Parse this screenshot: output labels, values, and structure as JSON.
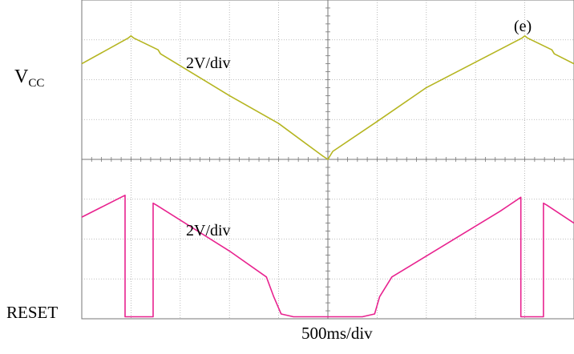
{
  "panel_tag": "(e)",
  "channel_labels": {
    "ch1_main": "V",
    "ch1_sub": "CC",
    "ch2": "RESET"
  },
  "scales": {
    "ch1": "2V/div",
    "ch2": "2V/div",
    "time": "500ms/div"
  },
  "colors": {
    "ch1": "#b5b520",
    "ch2": "#e8238f",
    "grid": "#aaaaaa",
    "background": "#ffffff"
  },
  "chart_data": {
    "type": "line",
    "x_unit": "div",
    "y_unit": "div",
    "xlim": [
      0,
      10
    ],
    "ylim": [
      0,
      8
    ],
    "grid": true,
    "series": [
      {
        "name": "V_CC",
        "color": "#b5b520",
        "x": [
          0,
          0.95,
          1.0,
          1.05,
          1.55,
          1.6,
          3.0,
          4.0,
          4.9,
          5.0,
          5.1,
          6.0,
          7.0,
          8.95,
          9.0,
          9.05,
          9.55,
          9.6,
          10.0
        ],
        "y": [
          6.4,
          7.05,
          7.1,
          7.05,
          6.75,
          6.65,
          5.6,
          4.9,
          4.08,
          4.0,
          4.2,
          4.95,
          5.8,
          7.05,
          7.1,
          7.05,
          6.75,
          6.65,
          6.4
        ]
      },
      {
        "name": "RESET",
        "color": "#e8238f",
        "x": [
          0,
          0.88,
          0.88,
          1.0,
          1.45,
          1.45,
          1.52,
          3.0,
          3.75,
          3.9,
          4.05,
          4.3,
          5.0,
          5.7,
          5.95,
          6.05,
          6.3,
          8.5,
          8.92,
          8.92,
          9.0,
          9.38,
          9.38,
          9.45,
          10.0
        ],
        "y": [
          2.55,
          3.1,
          0.05,
          0.05,
          0.05,
          2.9,
          2.85,
          1.7,
          1.05,
          0.55,
          0.12,
          0.05,
          0.05,
          0.05,
          0.12,
          0.55,
          1.05,
          2.7,
          3.05,
          0.05,
          0.05,
          0.05,
          2.9,
          2.85,
          2.4
        ]
      }
    ]
  }
}
